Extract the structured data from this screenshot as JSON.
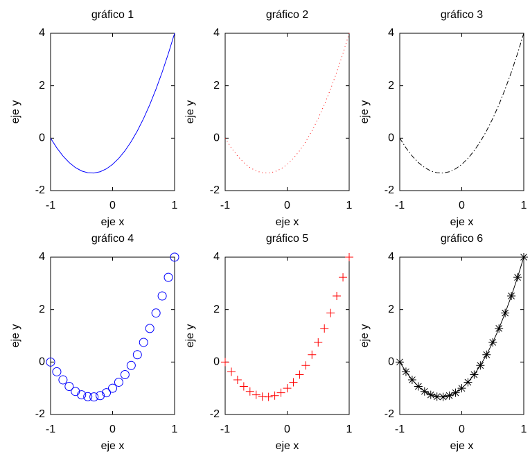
{
  "chart_data": [
    {
      "type": "line",
      "title": "gráfico 1",
      "xlabel": "eje x",
      "ylabel": "eje y",
      "line_style": "solid",
      "marker": "none",
      "color": "#0000ff",
      "x": [
        -1,
        -0.9,
        -0.8,
        -0.7,
        -0.6,
        -0.5,
        -0.4,
        -0.3,
        -0.2,
        -0.1,
        0,
        0.1,
        0.2,
        0.3,
        0.4,
        0.5,
        0.6,
        0.7,
        0.8,
        0.9,
        1
      ],
      "values": [
        0,
        -0.37,
        -0.68,
        -0.93,
        -1.12,
        -1.25,
        -1.32,
        -1.33,
        -1.28,
        -1.17,
        -1,
        -0.77,
        -0.48,
        -0.13,
        0.28,
        0.75,
        1.28,
        1.87,
        2.52,
        3.23,
        4
      ],
      "xlim": [
        -1,
        1
      ],
      "ylim": [
        -2,
        4
      ],
      "xticks": [
        -1,
        0,
        1
      ],
      "yticks": [
        -2,
        0,
        2,
        4
      ]
    },
    {
      "type": "line",
      "title": "gráfico 2",
      "xlabel": "eje x",
      "ylabel": "eje y",
      "line_style": "dotted",
      "marker": "none",
      "color": "#ff0000",
      "x": [
        -1,
        -0.9,
        -0.8,
        -0.7,
        -0.6,
        -0.5,
        -0.4,
        -0.3,
        -0.2,
        -0.1,
        0,
        0.1,
        0.2,
        0.3,
        0.4,
        0.5,
        0.6,
        0.7,
        0.8,
        0.9,
        1
      ],
      "values": [
        0,
        -0.37,
        -0.68,
        -0.93,
        -1.12,
        -1.25,
        -1.32,
        -1.33,
        -1.28,
        -1.17,
        -1,
        -0.77,
        -0.48,
        -0.13,
        0.28,
        0.75,
        1.28,
        1.87,
        2.52,
        3.23,
        4
      ],
      "xlim": [
        -1,
        1
      ],
      "ylim": [
        -2,
        4
      ],
      "xticks": [
        -1,
        0,
        1
      ],
      "yticks": [
        -2,
        0,
        2,
        4
      ]
    },
    {
      "type": "line",
      "title": "gráfico 3",
      "xlabel": "eje x",
      "ylabel": "eje y",
      "line_style": "dashdot",
      "marker": "none",
      "color": "#000000",
      "x": [
        -1,
        -0.9,
        -0.8,
        -0.7,
        -0.6,
        -0.5,
        -0.4,
        -0.3,
        -0.2,
        -0.1,
        0,
        0.1,
        0.2,
        0.3,
        0.4,
        0.5,
        0.6,
        0.7,
        0.8,
        0.9,
        1
      ],
      "values": [
        0,
        -0.37,
        -0.68,
        -0.93,
        -1.12,
        -1.25,
        -1.32,
        -1.33,
        -1.28,
        -1.17,
        -1,
        -0.77,
        -0.48,
        -0.13,
        0.28,
        0.75,
        1.28,
        1.87,
        2.52,
        3.23,
        4
      ],
      "xlim": [
        -1,
        1
      ],
      "ylim": [
        -2,
        4
      ],
      "xticks": [
        -1,
        0,
        1
      ],
      "yticks": [
        -2,
        0,
        2,
        4
      ]
    },
    {
      "type": "line",
      "title": "gráfico 4",
      "xlabel": "eje x",
      "ylabel": "eje y",
      "line_style": "none",
      "marker": "circle",
      "color": "#0000ff",
      "x": [
        -1,
        -0.9,
        -0.8,
        -0.7,
        -0.6,
        -0.5,
        -0.4,
        -0.3,
        -0.2,
        -0.1,
        0,
        0.1,
        0.2,
        0.3,
        0.4,
        0.5,
        0.6,
        0.7,
        0.8,
        0.9,
        1
      ],
      "values": [
        0,
        -0.37,
        -0.68,
        -0.93,
        -1.12,
        -1.25,
        -1.32,
        -1.33,
        -1.28,
        -1.17,
        -1,
        -0.77,
        -0.48,
        -0.13,
        0.28,
        0.75,
        1.28,
        1.87,
        2.52,
        3.23,
        4
      ],
      "xlim": [
        -1,
        1
      ],
      "ylim": [
        -2,
        4
      ],
      "xticks": [
        -1,
        0,
        1
      ],
      "yticks": [
        -2,
        0,
        2,
        4
      ]
    },
    {
      "type": "line",
      "title": "gráfico 5",
      "xlabel": "eje x",
      "ylabel": "eje y",
      "line_style": "none",
      "marker": "plus",
      "color": "#ff0000",
      "x": [
        -1,
        -0.9,
        -0.8,
        -0.7,
        -0.6,
        -0.5,
        -0.4,
        -0.3,
        -0.2,
        -0.1,
        0,
        0.1,
        0.2,
        0.3,
        0.4,
        0.5,
        0.6,
        0.7,
        0.8,
        0.9,
        1
      ],
      "values": [
        0,
        -0.37,
        -0.68,
        -0.93,
        -1.12,
        -1.25,
        -1.32,
        -1.33,
        -1.28,
        -1.17,
        -1,
        -0.77,
        -0.48,
        -0.13,
        0.28,
        0.75,
        1.28,
        1.87,
        2.52,
        3.23,
        4
      ],
      "xlim": [
        -1,
        1
      ],
      "ylim": [
        -2,
        4
      ],
      "xticks": [
        -1,
        0,
        1
      ],
      "yticks": [
        -2,
        0,
        2,
        4
      ]
    },
    {
      "type": "line",
      "title": "gráfico 6",
      "xlabel": "eje x",
      "ylabel": "eje y",
      "line_style": "solid",
      "marker": "star",
      "color": "#000000",
      "x": [
        -1,
        -0.9,
        -0.8,
        -0.7,
        -0.6,
        -0.5,
        -0.4,
        -0.3,
        -0.2,
        -0.1,
        0,
        0.1,
        0.2,
        0.3,
        0.4,
        0.5,
        0.6,
        0.7,
        0.8,
        0.9,
        1
      ],
      "values": [
        0,
        -0.37,
        -0.68,
        -0.93,
        -1.12,
        -1.25,
        -1.32,
        -1.33,
        -1.28,
        -1.17,
        -1,
        -0.77,
        -0.48,
        -0.13,
        0.28,
        0.75,
        1.28,
        1.87,
        2.52,
        3.23,
        4
      ],
      "xlim": [
        -1,
        1
      ],
      "ylim": [
        -2,
        4
      ],
      "xticks": [
        -1,
        0,
        1
      ],
      "yticks": [
        -2,
        0,
        2,
        4
      ]
    }
  ]
}
